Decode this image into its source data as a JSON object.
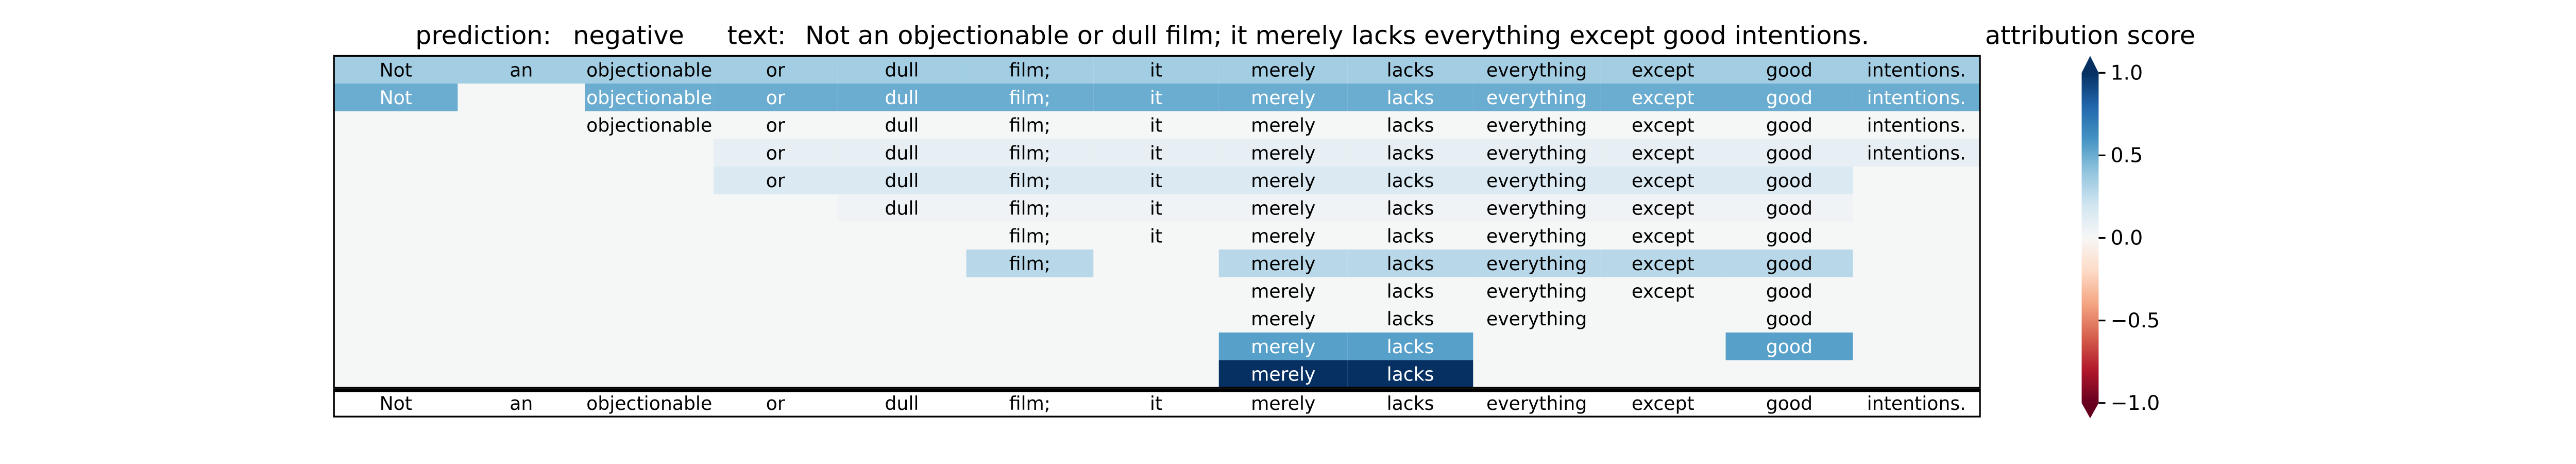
{
  "chart_data": {
    "type": "heatmap",
    "header": {
      "prediction_label": "prediction:",
      "prediction_value": "negative",
      "text_label": "text:",
      "text_value": "Not an objectionable or dull film; it merely lacks everything except good intentions."
    },
    "tokens": [
      "Not",
      "an",
      "objectionable",
      "or",
      "dull",
      "film;",
      "it",
      "merely",
      "lacks",
      "everything",
      "except",
      "good",
      "intentions."
    ],
    "rows": [
      {
        "cells": [
          {
            "s": 0.35
          },
          {
            "s": 0.35
          },
          {
            "s": 0.35
          },
          {
            "s": 0.35
          },
          {
            "s": 0.35
          },
          {
            "s": 0.35
          },
          {
            "s": 0.35
          },
          {
            "s": 0.35
          },
          {
            "s": 0.35
          },
          {
            "s": 0.35
          },
          {
            "s": 0.35
          },
          {
            "s": 0.35
          },
          {
            "s": 0.35
          }
        ]
      },
      {
        "cells": [
          {
            "s": 0.5
          },
          null,
          {
            "s": 0.5
          },
          {
            "s": 0.5
          },
          {
            "s": 0.5
          },
          {
            "s": 0.5
          },
          {
            "s": 0.5
          },
          {
            "s": 0.5
          },
          {
            "s": 0.5
          },
          {
            "s": 0.5
          },
          {
            "s": 0.5
          },
          {
            "s": 0.5
          },
          {
            "s": 0.5
          }
        ]
      },
      {
        "cells": [
          null,
          null,
          {
            "s": 0.0
          },
          {
            "s": 0.0
          },
          {
            "s": 0.0
          },
          {
            "s": 0.0
          },
          {
            "s": 0.0
          },
          {
            "s": 0.0
          },
          {
            "s": 0.0
          },
          {
            "s": 0.0
          },
          {
            "s": 0.0
          },
          {
            "s": 0.0
          },
          {
            "s": 0.0
          }
        ]
      },
      {
        "cells": [
          null,
          null,
          null,
          {
            "s": 0.08
          },
          {
            "s": 0.08
          },
          {
            "s": 0.08
          },
          {
            "s": 0.08
          },
          {
            "s": 0.08
          },
          {
            "s": 0.08
          },
          {
            "s": 0.08
          },
          {
            "s": 0.08
          },
          {
            "s": 0.08
          },
          {
            "s": 0.08
          }
        ]
      },
      {
        "cells": [
          null,
          null,
          null,
          {
            "s": 0.15
          },
          {
            "s": 0.15
          },
          {
            "s": 0.15
          },
          {
            "s": 0.15
          },
          {
            "s": 0.15
          },
          {
            "s": 0.15
          },
          {
            "s": 0.15
          },
          {
            "s": 0.15
          },
          {
            "s": 0.15
          },
          null
        ]
      },
      {
        "cells": [
          null,
          null,
          null,
          null,
          {
            "s": 0.03
          },
          {
            "s": 0.03
          },
          {
            "s": 0.03
          },
          {
            "s": 0.03
          },
          {
            "s": 0.03
          },
          {
            "s": 0.03
          },
          {
            "s": 0.03
          },
          {
            "s": 0.03
          },
          null
        ]
      },
      {
        "cells": [
          null,
          null,
          null,
          null,
          null,
          {
            "s": 0.0
          },
          {
            "s": 0.0
          },
          {
            "s": 0.0
          },
          {
            "s": 0.0
          },
          {
            "s": 0.0
          },
          {
            "s": 0.0
          },
          {
            "s": 0.0
          },
          null
        ]
      },
      {
        "cells": [
          null,
          null,
          null,
          null,
          null,
          {
            "s": 0.28
          },
          null,
          {
            "s": 0.28
          },
          {
            "s": 0.28
          },
          {
            "s": 0.28
          },
          {
            "s": 0.28
          },
          {
            "s": 0.28
          },
          null
        ]
      },
      {
        "cells": [
          null,
          null,
          null,
          null,
          null,
          null,
          null,
          {
            "s": 0.0
          },
          {
            "s": 0.0
          },
          {
            "s": 0.0
          },
          {
            "s": 0.0
          },
          {
            "s": 0.0
          },
          null
        ]
      },
      {
        "cells": [
          null,
          null,
          null,
          null,
          null,
          null,
          null,
          {
            "s": 0.0
          },
          {
            "s": 0.0
          },
          {
            "s": 0.0
          },
          null,
          {
            "s": 0.0
          },
          null
        ]
      },
      {
        "cells": [
          null,
          null,
          null,
          null,
          null,
          null,
          null,
          {
            "s": 0.55
          },
          {
            "s": 0.55
          },
          null,
          null,
          {
            "s": 0.55
          },
          null
        ]
      },
      {
        "cells": [
          null,
          null,
          null,
          null,
          null,
          null,
          null,
          {
            "s": 1.0
          },
          {
            "s": 1.0
          },
          null,
          null,
          null,
          null
        ]
      }
    ],
    "baseline_row": [
      "Not",
      "an",
      "objectionable",
      "or",
      "dull",
      "film;",
      "it",
      "merely",
      "lacks",
      "everything",
      "except",
      "good",
      "intentions."
    ],
    "colorbar": {
      "label": "attribution score",
      "range": [
        -1.0,
        1.0
      ],
      "ticks": [
        {
          "value": 1.0,
          "label": "1.0"
        },
        {
          "value": 0.5,
          "label": "0.5"
        },
        {
          "value": 0.0,
          "label": "0.0"
        },
        {
          "value": -0.5,
          "label": "−0.5"
        },
        {
          "value": -1.0,
          "label": "−1.0"
        }
      ],
      "colormap": "RdBu"
    },
    "colors": {
      "empty": "#f5f6f6",
      "border": "#000000"
    }
  }
}
